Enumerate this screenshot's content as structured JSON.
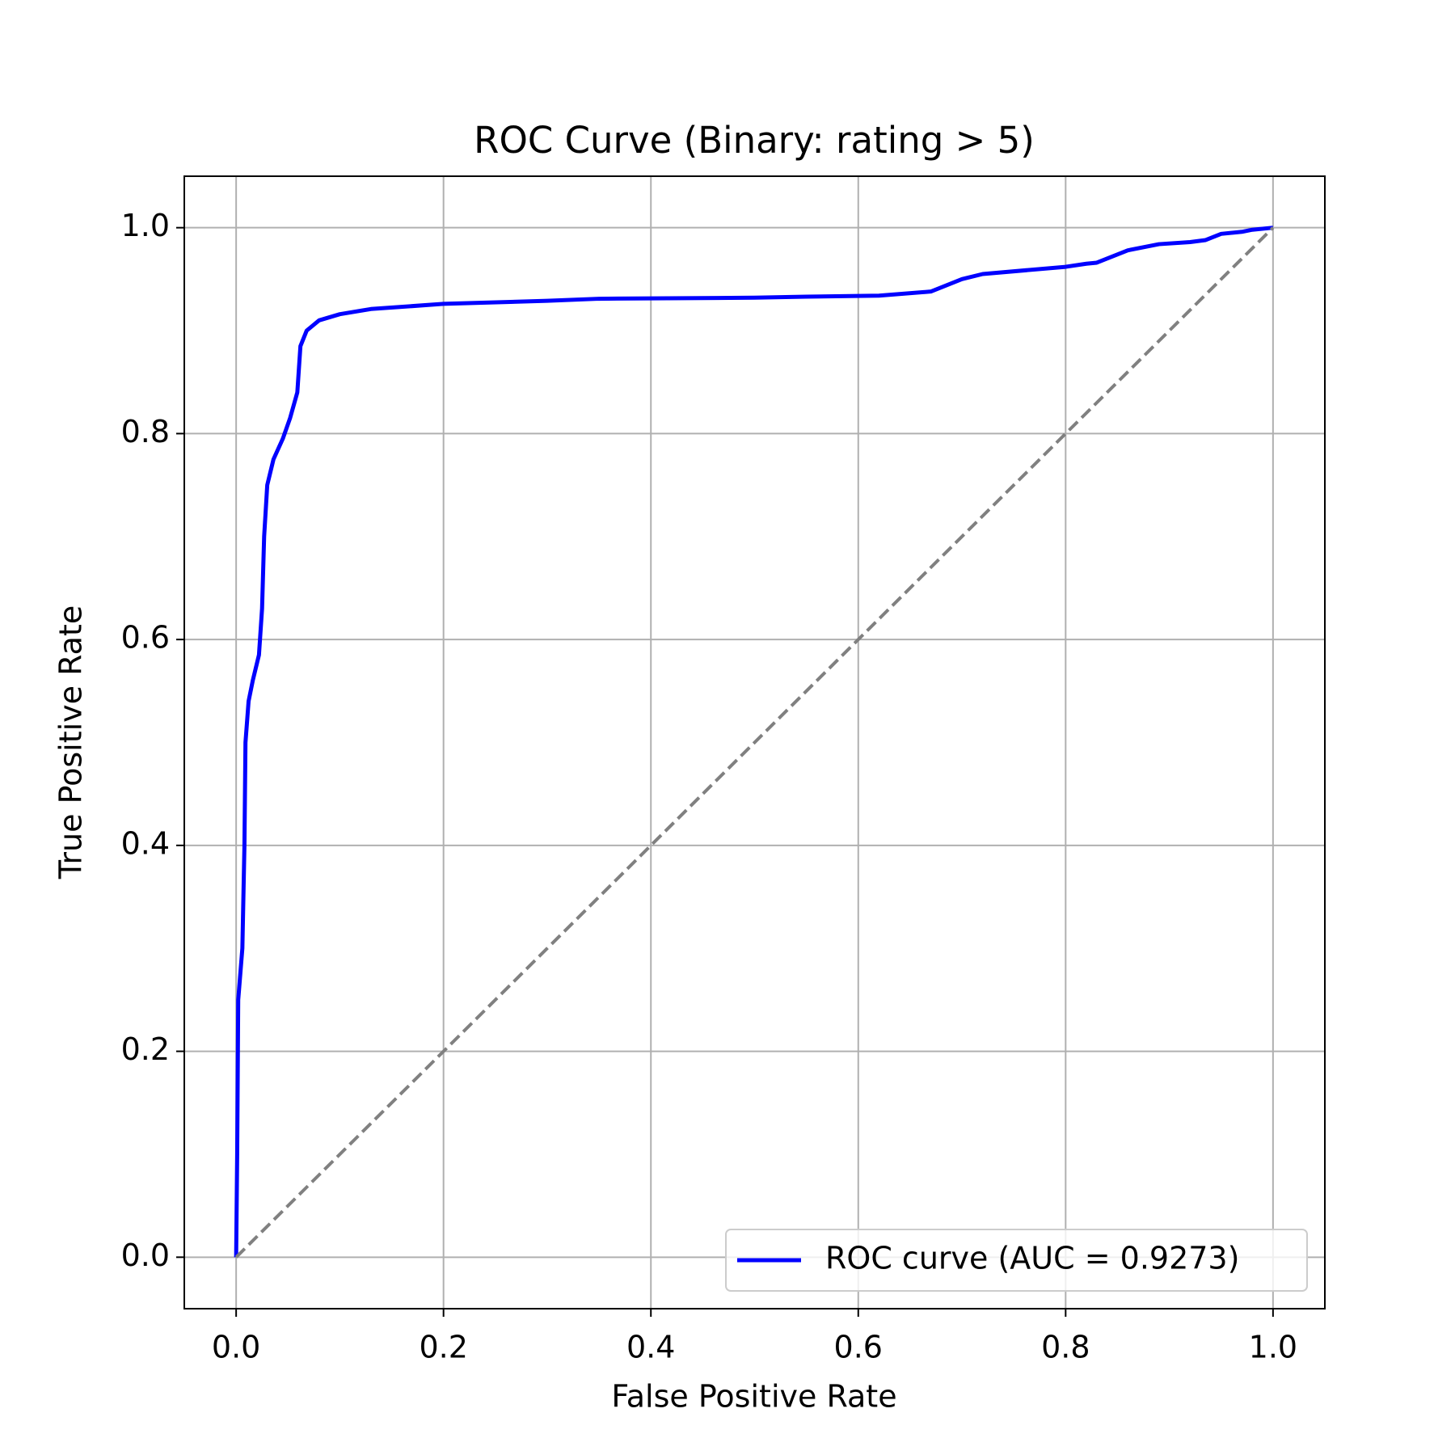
{
  "chart_data": {
    "type": "line",
    "title": "ROC Curve (Binary: rating > 5)",
    "xlabel": "False Positive Rate",
    "ylabel": "True Positive Rate",
    "xlim": [
      -0.05,
      1.05
    ],
    "ylim": [
      -0.05,
      1.05
    ],
    "xticks": [
      {
        "value": 0,
        "label": "0.0"
      },
      {
        "value": 0.2,
        "label": "0.2"
      },
      {
        "value": 0.4,
        "label": "0.4"
      },
      {
        "value": 0.6,
        "label": "0.6"
      },
      {
        "value": 0.8,
        "label": "0.8"
      },
      {
        "value": 1,
        "label": "1.0"
      }
    ],
    "yticks": [
      {
        "value": 0,
        "label": "0.0"
      },
      {
        "value": 0.2,
        "label": "0.2"
      },
      {
        "value": 0.4,
        "label": "0.4"
      },
      {
        "value": 0.6,
        "label": "0.6"
      },
      {
        "value": 0.8,
        "label": "0.8"
      },
      {
        "value": 1,
        "label": "1.0"
      }
    ],
    "grid": true,
    "legend": "lower right",
    "series": [
      {
        "name": "ROC curve (AUC = 0.9273)",
        "color": "#0000ff",
        "x": [
          0,
          0.001,
          0.002,
          0.006,
          0.008,
          0.009,
          0.012,
          0.016,
          0.022,
          0.025,
          0.027,
          0.03,
          0.036,
          0.045,
          0.052,
          0.059,
          0.062,
          0.068,
          0.08,
          0.1,
          0.13,
          0.2,
          0.3,
          0.35,
          0.5,
          0.55,
          0.62,
          0.67,
          0.7,
          0.72,
          0.8,
          0.82,
          0.83,
          0.86,
          0.89,
          0.92,
          0.935,
          0.95,
          0.97,
          0.98,
          1
        ],
        "values": [
          0,
          0.1,
          0.25,
          0.3,
          0.4,
          0.5,
          0.54,
          0.56,
          0.585,
          0.63,
          0.7,
          0.75,
          0.775,
          0.795,
          0.815,
          0.84,
          0.885,
          0.9,
          0.91,
          0.916,
          0.921,
          0.926,
          0.929,
          0.931,
          0.932,
          0.933,
          0.934,
          0.938,
          0.95,
          0.955,
          0.962,
          0.965,
          0.966,
          0.978,
          0.984,
          0.986,
          0.988,
          0.994,
          0.996,
          0.998,
          1
        ]
      },
      {
        "color": "#808080",
        "dashed": true,
        "x": [
          0,
          1
        ],
        "values": [
          0,
          1
        ]
      }
    ]
  }
}
